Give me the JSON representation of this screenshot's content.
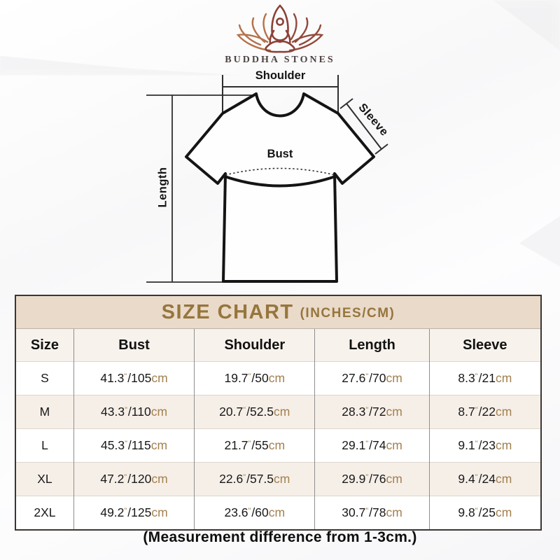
{
  "logo": {
    "brand": "BUDDHA STONES",
    "icon": "lotus-meditation-icon",
    "colors": {
      "petals_left": "#b5714a",
      "petals_right": "#93493a",
      "figure": "#8c4136",
      "brand_text": "#4e4341"
    }
  },
  "diagram": {
    "labels": {
      "shoulder": "Shoulder",
      "sleeve": "Sleeve",
      "bust": "Bust",
      "length": "Length"
    }
  },
  "size_chart": {
    "title": "SIZE CHART",
    "title_suffix": "(INCHES/CM)",
    "columns": [
      "Size",
      "Bust",
      "Shoulder",
      "Length",
      "Sleeve"
    ],
    "unit_inch": "\"",
    "separator": "/",
    "unit_cm": "cm",
    "rows": [
      {
        "size": "S",
        "bust": [
          "41.3",
          "105"
        ],
        "shoulder": [
          "19.7",
          "50"
        ],
        "length": [
          "27.6",
          "70"
        ],
        "sleeve": [
          "8.3",
          "21"
        ]
      },
      {
        "size": "M",
        "bust": [
          "43.3",
          "110"
        ],
        "shoulder": [
          "20.7",
          "52.5"
        ],
        "length": [
          "28.3",
          "72"
        ],
        "sleeve": [
          "8.7",
          "22"
        ]
      },
      {
        "size": "L",
        "bust": [
          "45.3",
          "115"
        ],
        "shoulder": [
          "21.7",
          "55"
        ],
        "length": [
          "29.1",
          "74"
        ],
        "sleeve": [
          "9.1",
          "23"
        ]
      },
      {
        "size": "XL",
        "bust": [
          "47.2",
          "120"
        ],
        "shoulder": [
          "22.6",
          "57.5"
        ],
        "length": [
          "29.9",
          "76"
        ],
        "sleeve": [
          "9.4",
          "24"
        ]
      },
      {
        "size": "2XL",
        "bust": [
          "49.2",
          "125"
        ],
        "shoulder": [
          "23.6",
          "60"
        ],
        "length": [
          "30.7",
          "78"
        ],
        "sleeve": [
          "9.8",
          "25"
        ]
      }
    ],
    "colors": {
      "band_bg": "#eadaca",
      "title_text": "#96763d",
      "unit_text": "#a3814f",
      "alt_row_bg": "#f6efe8"
    }
  },
  "footer": {
    "note": "(Measurement difference from 1-3cm.)"
  }
}
